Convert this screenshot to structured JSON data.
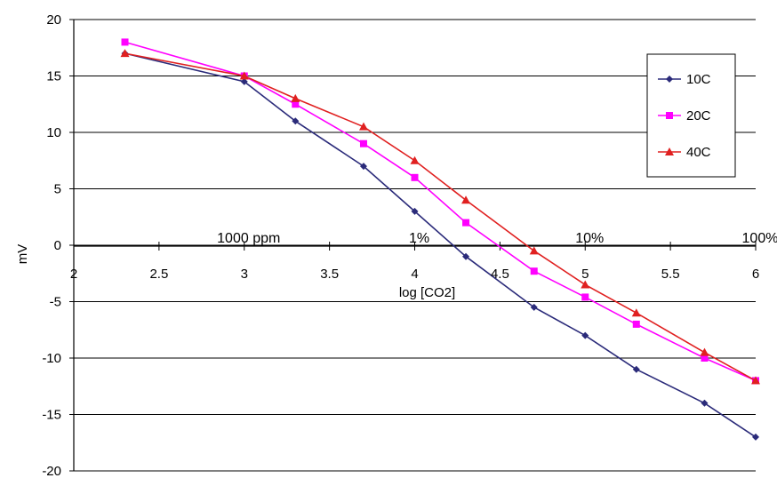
{
  "chart_data": {
    "type": "line",
    "title": "",
    "xlabel": "log [CO2]",
    "ylabel": "mV",
    "xlim": [
      2,
      6
    ],
    "ylim": [
      -20,
      20
    ],
    "x_ticks": [
      2,
      2.5,
      3,
      3.5,
      4,
      4.5,
      5,
      5.5,
      6
    ],
    "x_tick_labels": [
      "2",
      "2.5",
      "3",
      "3.5",
      "4",
      "4.5",
      "5",
      "5.5",
      "6"
    ],
    "y_ticks": [
      -20,
      -15,
      -10,
      -5,
      0,
      5,
      10,
      15,
      20
    ],
    "y_tick_labels": [
      "-20",
      "-15",
      "-10",
      "-5",
      "0",
      "5",
      "10",
      "15",
      "20"
    ],
    "grid": "horizontal",
    "legend_position": "top-right",
    "annotations": [
      {
        "text": "1000 ppm",
        "x": 3
      },
      {
        "text": "1%",
        "x": 4
      },
      {
        "text": "10%",
        "x": 5
      },
      {
        "text": "100%",
        "x": 6
      }
    ],
    "series": [
      {
        "name": "10C",
        "color": "#2b2b7a",
        "marker": "diamond",
        "x": [
          2.3,
          3,
          3.3,
          3.7,
          4,
          4.3,
          4.7,
          5,
          5.3,
          5.7,
          6
        ],
        "y": [
          17,
          14.5,
          11,
          7,
          3,
          -1,
          -5.5,
          -8,
          -11,
          -14,
          -17
        ]
      },
      {
        "name": "20C",
        "color": "#ff00ff",
        "marker": "square",
        "x": [
          2.3,
          3,
          3.3,
          3.7,
          4,
          4.3,
          4.7,
          5,
          5.3,
          5.7,
          6
        ],
        "y": [
          18,
          15,
          12.5,
          9,
          6,
          2,
          -2.3,
          -4.6,
          -7,
          -10,
          -12
        ]
      },
      {
        "name": "40C",
        "color": "#e02020",
        "marker": "triangle",
        "x": [
          2.3,
          3,
          3.3,
          3.7,
          4,
          4.3,
          4.7,
          5,
          5.3,
          5.7,
          6
        ],
        "y": [
          17,
          15,
          13,
          10.5,
          7.5,
          4,
          -0.5,
          -3.5,
          -6,
          -9.5,
          -12
        ]
      }
    ]
  }
}
